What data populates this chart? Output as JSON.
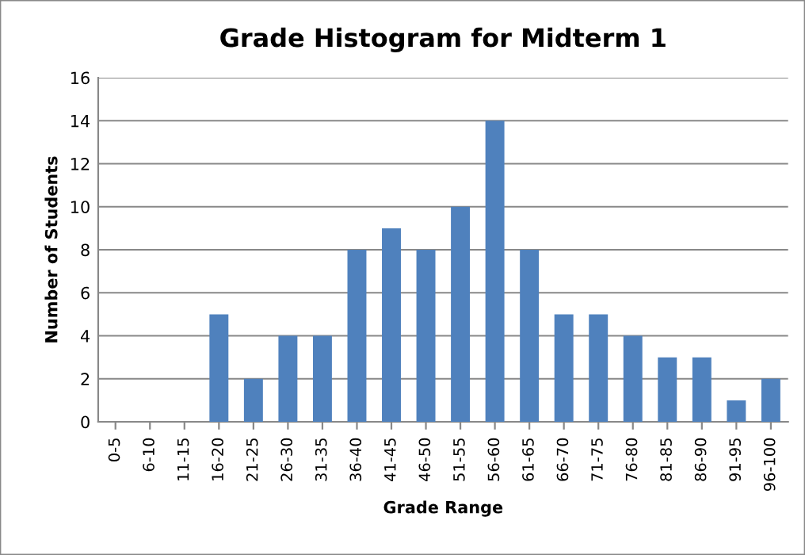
{
  "chart_data": {
    "type": "bar",
    "title": "Grade Histogram for Midterm 1",
    "xlabel": "Grade Range",
    "ylabel": "Number of Students",
    "categories": [
      "0-5",
      "6-10",
      "11-15",
      "16-20",
      "21-25",
      "26-30",
      "31-35",
      "36-40",
      "41-45",
      "46-50",
      "51-55",
      "56-60",
      "61-65",
      "66-70",
      "71-75",
      "76-80",
      "81-85",
      "86-90",
      "91-95",
      "96-100"
    ],
    "values": [
      0,
      0,
      0,
      5,
      2,
      4,
      4,
      8,
      9,
      8,
      10,
      14,
      8,
      5,
      5,
      4,
      3,
      3,
      1,
      2
    ],
    "color": "#4f81bd",
    "ylim": [
      0,
      16
    ],
    "yticks": [
      0,
      2,
      4,
      6,
      8,
      10,
      12,
      14,
      16
    ],
    "grid": "y",
    "legend": false
  }
}
